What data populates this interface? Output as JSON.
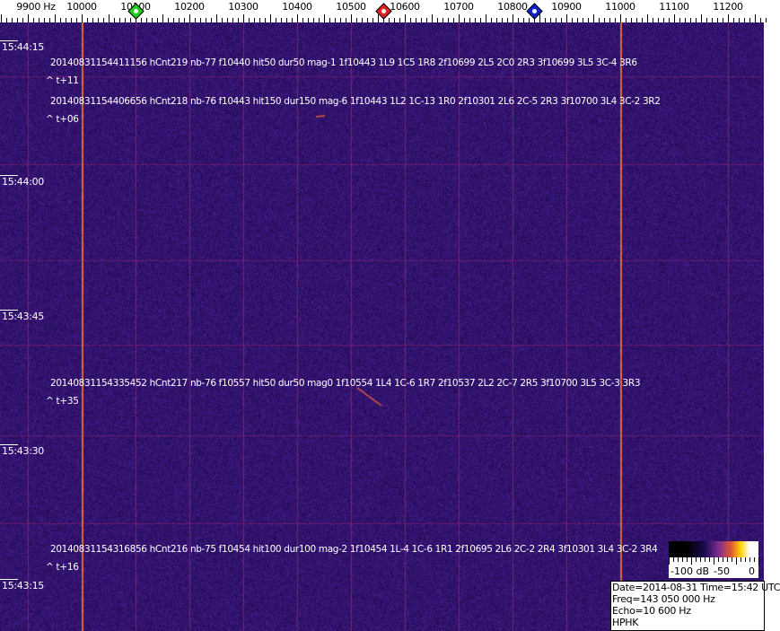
{
  "frequency_axis": {
    "labels": [
      "9900 Hz",
      "10000",
      "10100",
      "10200",
      "10300",
      "10400",
      "10500",
      "10600",
      "10700",
      "10800",
      "10900",
      "11000",
      "11100",
      "11200"
    ]
  },
  "markers": [
    {
      "name": "green-marker",
      "freq_hz": 10100,
      "color": "#22cc22"
    },
    {
      "name": "red-marker",
      "freq_hz": 10560,
      "color": "#dd2222"
    },
    {
      "name": "blue-marker",
      "freq_hz": 10840,
      "color": "#1122cc"
    }
  ],
  "time_labels": [
    "15:44:15",
    "15:44:00",
    "15:43:45",
    "15:43:30",
    "15:43:15"
  ],
  "detections": [
    {
      "text": "20140831154411156 hCnt219 nb-77 f10440 hit50 dur50 mag-1 1f10443 1L9 1C5 1R8 2f10699 2L5 2C0 2R3 3f10699 3L5 3C-4 3R6",
      "delta": "^ t+11"
    },
    {
      "text": "20140831154406656 hCnt218 nb-76 f10443 hit150 dur150 mag-6 1f10443 1L2 1C-13 1R0 2f10301 2L6 2C-5 2R3 3f10700 3L4 3C-2 3R2",
      "delta": "^ t+06"
    },
    {
      "text": "20140831154335452 hCnt217 nb-76 f10557 hit50 dur50 mag0 1f10554 1L4 1C-6 1R7 2f10537 2L2 2C-7 2R5 3f10700 3L5 3C-3 3R3",
      "delta": "^ t+35"
    },
    {
      "text": "20140831154316856 hCnt216 nb-75 f10454 hit100 dur100 mag-2 1f10454 1L-4 1C-6 1R1 2f10695 2L6 2C-2 2R4 3f10301 3L4 3C-2 3R4",
      "delta": "^ t+16"
    }
  ],
  "color_scale": {
    "labels": [
      "-100 dB",
      "-50",
      "0"
    ]
  },
  "info": {
    "date_time": "Date=2014-08-31 Time=15:42 UTC",
    "freq": "Freq=143 050 000 Hz",
    "echo": "Echo=10 600 Hz",
    "station": "HPHK"
  }
}
